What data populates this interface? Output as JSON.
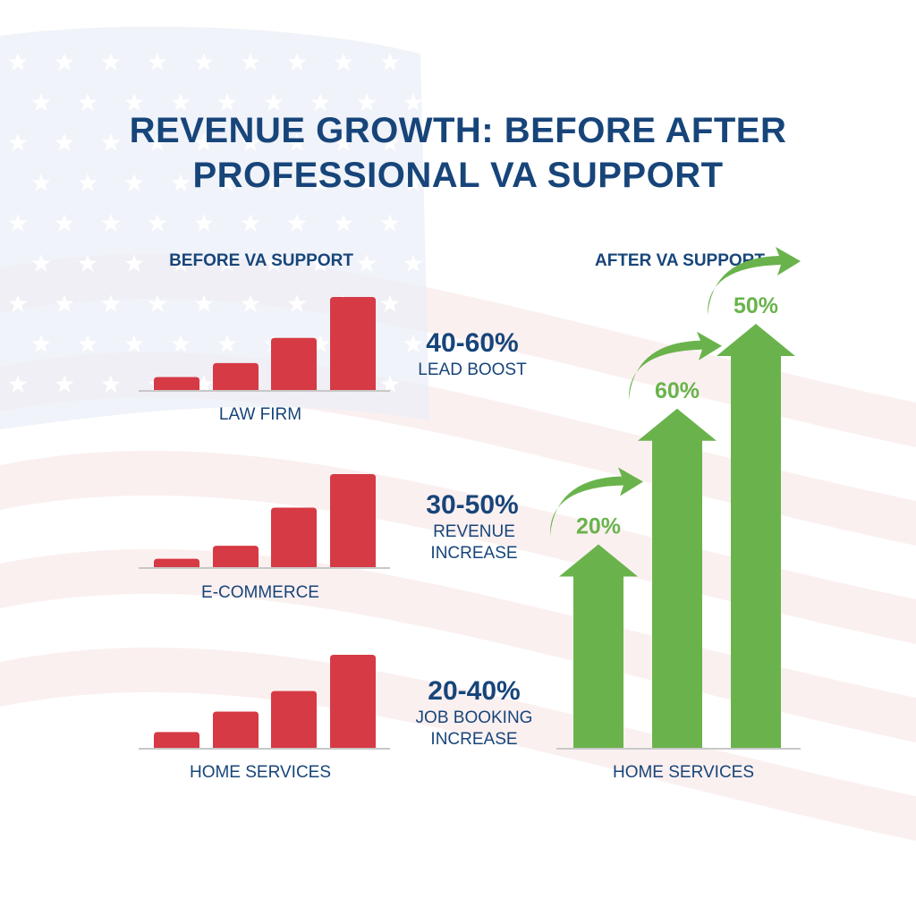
{
  "title_line1": "REVENUE GROWTH: BEFORE AFTER",
  "title_line2": "PROFESSIONAL VA SUPPORT",
  "colors": {
    "title": "#17457a",
    "before_bars": "#d63a44",
    "after_arrows": "#6ab34c",
    "baseline": "#c8c8c8"
  },
  "chart_data": [
    {
      "type": "bar",
      "title": "BEFORE VA SUPPORT",
      "panels": [
        {
          "category": "LAW FIRM",
          "values": [
            14,
            29,
            56,
            100
          ],
          "stat": "40-60%",
          "stat_label": [
            "LEAD BOOST"
          ]
        },
        {
          "category": "E-COMMERCE",
          "values": [
            9,
            23,
            64,
            100
          ],
          "stat": "30-50%",
          "stat_label": [
            "REVENUE",
            "INCREASE"
          ]
        },
        {
          "category": "HOME SERVICES",
          "values": [
            17,
            39,
            61,
            100
          ],
          "stat": "20-40%",
          "stat_label": [
            "JOB BOOKING",
            "INCREASE"
          ]
        }
      ],
      "value_units": "relative (no axis shown)"
    },
    {
      "type": "bar",
      "title": "AFTER VA SUPPORT",
      "category": "HOME SERVICES",
      "values": [
        48,
        80,
        100
      ],
      "data_labels": [
        "20%",
        "60%",
        "50%"
      ],
      "value_units": "relative (no axis shown)"
    }
  ]
}
